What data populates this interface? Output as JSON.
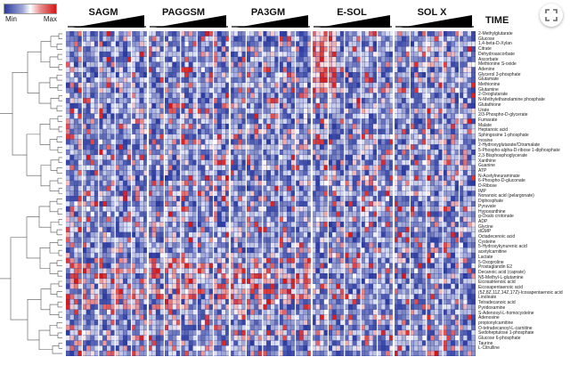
{
  "legend": {
    "min_label": "Min",
    "max_label": "Max",
    "colors": {
      "low": "#2b3a9f",
      "mid": "#ffffff",
      "high": "#d31616"
    }
  },
  "groups": [
    "SAGM",
    "PAGGSM",
    "PA3GM",
    "E-SOL",
    "SOL X"
  ],
  "time_label": "TIME",
  "expand_icon": "expand-icon",
  "metabolites": [
    "2-Methylglutarate",
    "Glucose",
    "1,4-beta-D-Xylan",
    "Citrate",
    "Dehydroascorbate",
    "Ascorbate",
    "Methionine S-oxide",
    "Adenine",
    "Glycerol 3-phosphate",
    "Glutamate",
    "Methionine",
    "Glutamine",
    "2-Oxoglutarate",
    "N-Methylethanolamine phosphate",
    "Glutathione",
    "Urate",
    "2/3-Phospho-D-glycerate",
    "Fumarate",
    "Malate",
    "Heptanoic acid",
    "Sphingosine 1-phosphate",
    "Inosine",
    "2-Hydroxyglutarate/Citramalate",
    "5-Phospho-alpha-D-ribose 1-diphosphate",
    "2,3-Bisphosphoglycerate",
    "Xanthine",
    "Guanine",
    "ATP",
    "N-Acetylneuraminate",
    "6-Phospho-D-gluconate",
    "D-Ribose",
    "IMP",
    "Nonanoic acid (pelargonate)",
    "Diphosphate",
    "Pyruvate",
    "Hypoxanthine",
    "g-Oxalo crotonate",
    "ADP",
    "Glycine",
    "dGMP",
    "Octadecenoic acid",
    "Cysteine",
    "5-Hydroxykynurenic acid",
    "acetylcarnitine",
    "Lactate",
    "5-Oxoproline",
    "Prostaglandin E2",
    "Decanoic acid (caprate)",
    "N5-Methyl-L-glutamine",
    "Eicosatrienoic acid",
    "Eicosapentaenoic acid",
    "(5Z,8Z,11Z,14Z,17Z)-Icosapentaenoic acid",
    "Linoleate",
    "Tetradecanoic acid",
    "Pyridoxamine",
    "S-Adenosyl-L-homocysteine",
    "Adenosine",
    "propionylcarnitine",
    "O-tetradecanoyl-L-carnitine",
    "Sedoheptulose 1-phosphate",
    "Glucose 6-phosphate",
    "Taurine",
    "L-Citrulline"
  ]
}
